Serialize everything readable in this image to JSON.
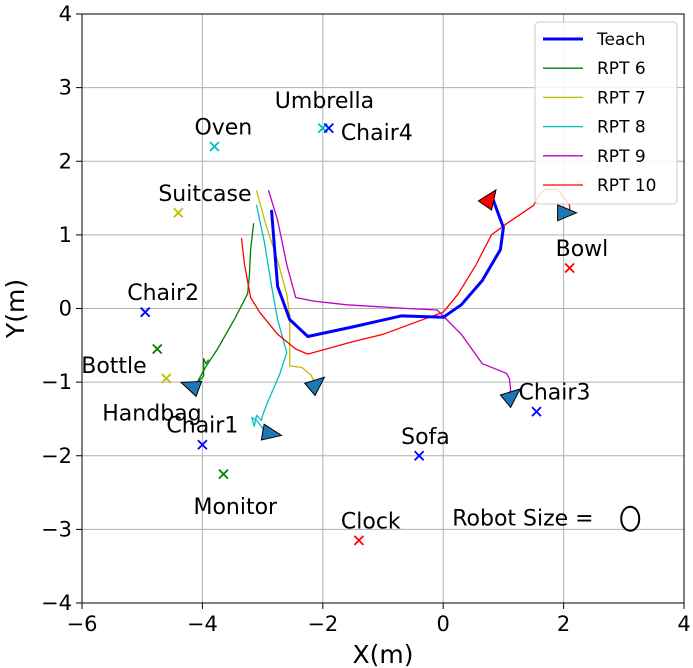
{
  "chart_data": {
    "type": "line",
    "title": "",
    "xlabel": "X(m)",
    "ylabel": "Y(m)",
    "xlim": [
      -6,
      4
    ],
    "ylim": [
      -4,
      4
    ],
    "xticks": [
      -6,
      -4,
      -2,
      0,
      2,
      4
    ],
    "yticks": [
      -4,
      -3,
      -2,
      -1,
      0,
      1,
      2,
      3,
      4
    ],
    "xtick_labels": [
      "−6",
      "−4",
      "−2",
      "0",
      "2",
      "4"
    ],
    "ytick_labels": [
      "−4",
      "−3",
      "−2",
      "−1",
      "0",
      "1",
      "2",
      "3",
      "4"
    ],
    "grid": true,
    "legend_position": "top-right",
    "series": [
      {
        "name": "Teach",
        "color": "#0000ff",
        "width": 3,
        "points": [
          [
            -2.85,
            1.32
          ],
          [
            -2.75,
            0.3
          ],
          [
            -2.55,
            -0.15
          ],
          [
            -2.25,
            -0.38
          ],
          [
            -1.5,
            -0.25
          ],
          [
            -0.7,
            -0.1
          ],
          [
            0,
            -0.12
          ],
          [
            0.3,
            0.05
          ],
          [
            0.65,
            0.38
          ],
          [
            0.95,
            0.8
          ],
          [
            1.0,
            1.1
          ],
          [
            0.9,
            1.32
          ],
          [
            0.82,
            1.5
          ]
        ]
      },
      {
        "name": "RPT 6",
        "color": "#008000",
        "width": 1.3,
        "points": [
          [
            -3.15,
            1.15
          ],
          [
            -3.2,
            0.8
          ],
          [
            -3.22,
            0.45
          ],
          [
            -3.25,
            0.2
          ],
          [
            -3.45,
            -0.12
          ],
          [
            -3.75,
            -0.55
          ],
          [
            -3.95,
            -0.8
          ],
          [
            -4.05,
            -0.95
          ],
          [
            -4.12,
            -1.05
          ],
          [
            -4.2,
            -1.08
          ],
          [
            -4.1,
            -1.02
          ],
          [
            -3.98,
            -0.92
          ],
          [
            -3.98,
            -0.68
          ],
          [
            -3.94,
            -0.75
          ],
          [
            -3.9,
            -0.7
          ]
        ]
      },
      {
        "name": "RPT 7",
        "color": "#bfbf00",
        "width": 1.3,
        "points": [
          [
            -3.1,
            1.6
          ],
          [
            -2.95,
            1.15
          ],
          [
            -2.75,
            0.65
          ],
          [
            -2.6,
            0.2
          ],
          [
            -2.55,
            -0.1
          ],
          [
            -2.55,
            -0.55
          ],
          [
            -2.55,
            -0.78
          ],
          [
            -2.35,
            -0.8
          ],
          [
            -2.2,
            -0.9
          ],
          [
            -2.1,
            -1.05
          ]
        ]
      },
      {
        "name": "RPT 8",
        "color": "#00bfbf",
        "width": 1.3,
        "points": [
          [
            -3.1,
            1.4
          ],
          [
            -2.97,
            0.9
          ],
          [
            -2.85,
            0.3
          ],
          [
            -2.75,
            -0.15
          ],
          [
            -2.65,
            -0.45
          ],
          [
            -2.6,
            -0.6
          ],
          [
            -2.72,
            -0.9
          ],
          [
            -2.92,
            -1.28
          ],
          [
            -3.0,
            -1.45
          ],
          [
            -3.02,
            -1.52
          ],
          [
            -3.1,
            -1.45
          ],
          [
            -3.14,
            -1.6
          ],
          [
            -3.18,
            -1.48
          ],
          [
            -3.1,
            -1.52
          ],
          [
            -2.95,
            -1.68
          ],
          [
            -2.85,
            -1.72
          ]
        ]
      },
      {
        "name": "RPT 9",
        "color": "#bf00bf",
        "width": 1.3,
        "points": [
          [
            -2.9,
            1.6
          ],
          [
            -2.75,
            1.2
          ],
          [
            -2.6,
            0.6
          ],
          [
            -2.45,
            0.15
          ],
          [
            -2.15,
            0.1
          ],
          [
            -1.6,
            0.05
          ],
          [
            -0.6,
            0.0
          ],
          [
            -0.1,
            -0.02
          ],
          [
            0.3,
            -0.35
          ],
          [
            0.65,
            -0.75
          ],
          [
            1.05,
            -0.88
          ],
          [
            1.1,
            -0.95
          ],
          [
            1.12,
            -1.1
          ],
          [
            1.1,
            -1.2
          ]
        ]
      },
      {
        "name": "RPT 10",
        "color": "#ff0000",
        "width": 1.3,
        "points": [
          [
            -3.35,
            0.95
          ],
          [
            -3.3,
            0.6
          ],
          [
            -3.2,
            0.15
          ],
          [
            -3.05,
            -0.05
          ],
          [
            -2.75,
            -0.35
          ],
          [
            -2.45,
            -0.55
          ],
          [
            -2.25,
            -0.62
          ],
          [
            -1.5,
            -0.45
          ],
          [
            -1.0,
            -0.35
          ],
          [
            -0.5,
            -0.2
          ],
          [
            0.0,
            -0.05
          ],
          [
            0.25,
            0.2
          ],
          [
            0.55,
            0.6
          ],
          [
            0.8,
            1.0
          ],
          [
            1.05,
            1.15
          ],
          [
            1.5,
            1.4
          ],
          [
            1.6,
            1.55
          ],
          [
            1.7,
            1.62
          ],
          [
            1.9,
            1.62
          ],
          [
            2.1,
            1.4
          ],
          [
            2.1,
            1.3
          ]
        ]
      }
    ],
    "objects": [
      {
        "name": "Umbrella",
        "x": -2.0,
        "y": 2.45,
        "color": "#00bfbf",
        "label_dx": -48,
        "label_dy": -20
      },
      {
        "name": "Chair4",
        "x": -1.9,
        "y": 2.45,
        "color": "#0000ff",
        "label_dx": 12,
        "label_dy": 12
      },
      {
        "name": "Oven",
        "x": -3.8,
        "y": 2.2,
        "color": "#00bfbf",
        "label_dx": -20,
        "label_dy": -12
      },
      {
        "name": "Suitcase",
        "x": -4.4,
        "y": 1.3,
        "color": "#bfbf00",
        "label_dx": -20,
        "label_dy": -12
      },
      {
        "name": "Bowl",
        "x": 2.1,
        "y": 0.55,
        "color": "#ff0000",
        "label_dx": -14,
        "label_dy": -12
      },
      {
        "name": "Chair2",
        "x": -4.95,
        "y": -0.05,
        "color": "#0000ff",
        "label_dx": -18,
        "label_dy": -12
      },
      {
        "name": "Bottle",
        "x": -4.75,
        "y": -0.55,
        "color": "#008000",
        "label_dx": -76,
        "label_dy": 24
      },
      {
        "name": "Handbag",
        "x": -4.6,
        "y": -0.95,
        "color": "#bfbf00",
        "label_dx": -64,
        "label_dy": 42
      },
      {
        "name": "Chair3",
        "x": 1.55,
        "y": -1.4,
        "color": "#0000ff",
        "label_dx": -18,
        "label_dy": -12
      },
      {
        "name": "Chair1",
        "x": -4.0,
        "y": -1.85,
        "color": "#0000ff",
        "label_dx": -36,
        "label_dy": -12
      },
      {
        "name": "Sofa",
        "x": -0.4,
        "y": -2.0,
        "color": "#0000ff",
        "label_dx": -18,
        "label_dy": -12
      },
      {
        "name": "Monitor",
        "x": -3.65,
        "y": -2.25,
        "color": "#008000",
        "label_dx": -30,
        "label_dy": 40
      },
      {
        "name": "Clock",
        "x": -1.4,
        "y": -3.15,
        "color": "#ff0000",
        "label_dx": -18,
        "label_dy": -12
      }
    ],
    "robot_markers": [
      {
        "x": 0.78,
        "y": 1.5,
        "angle": -55,
        "color": "#ff0000"
      },
      {
        "x": 2.05,
        "y": 1.3,
        "angle": 0,
        "color": "#1f77b4"
      },
      {
        "x": -4.2,
        "y": -1.05,
        "angle": 200,
        "color": "#1f77b4"
      },
      {
        "x": -2.1,
        "y": -1.02,
        "angle": -40,
        "color": "#1f77b4"
      },
      {
        "x": 1.15,
        "y": -1.18,
        "angle": -40,
        "color": "#1f77b4"
      },
      {
        "x": -2.85,
        "y": -1.7,
        "angle": 10,
        "color": "#1f77b4"
      }
    ],
    "annotation": {
      "text": "Robot Size = ",
      "x": 0.15,
      "y": -2.95
    }
  }
}
